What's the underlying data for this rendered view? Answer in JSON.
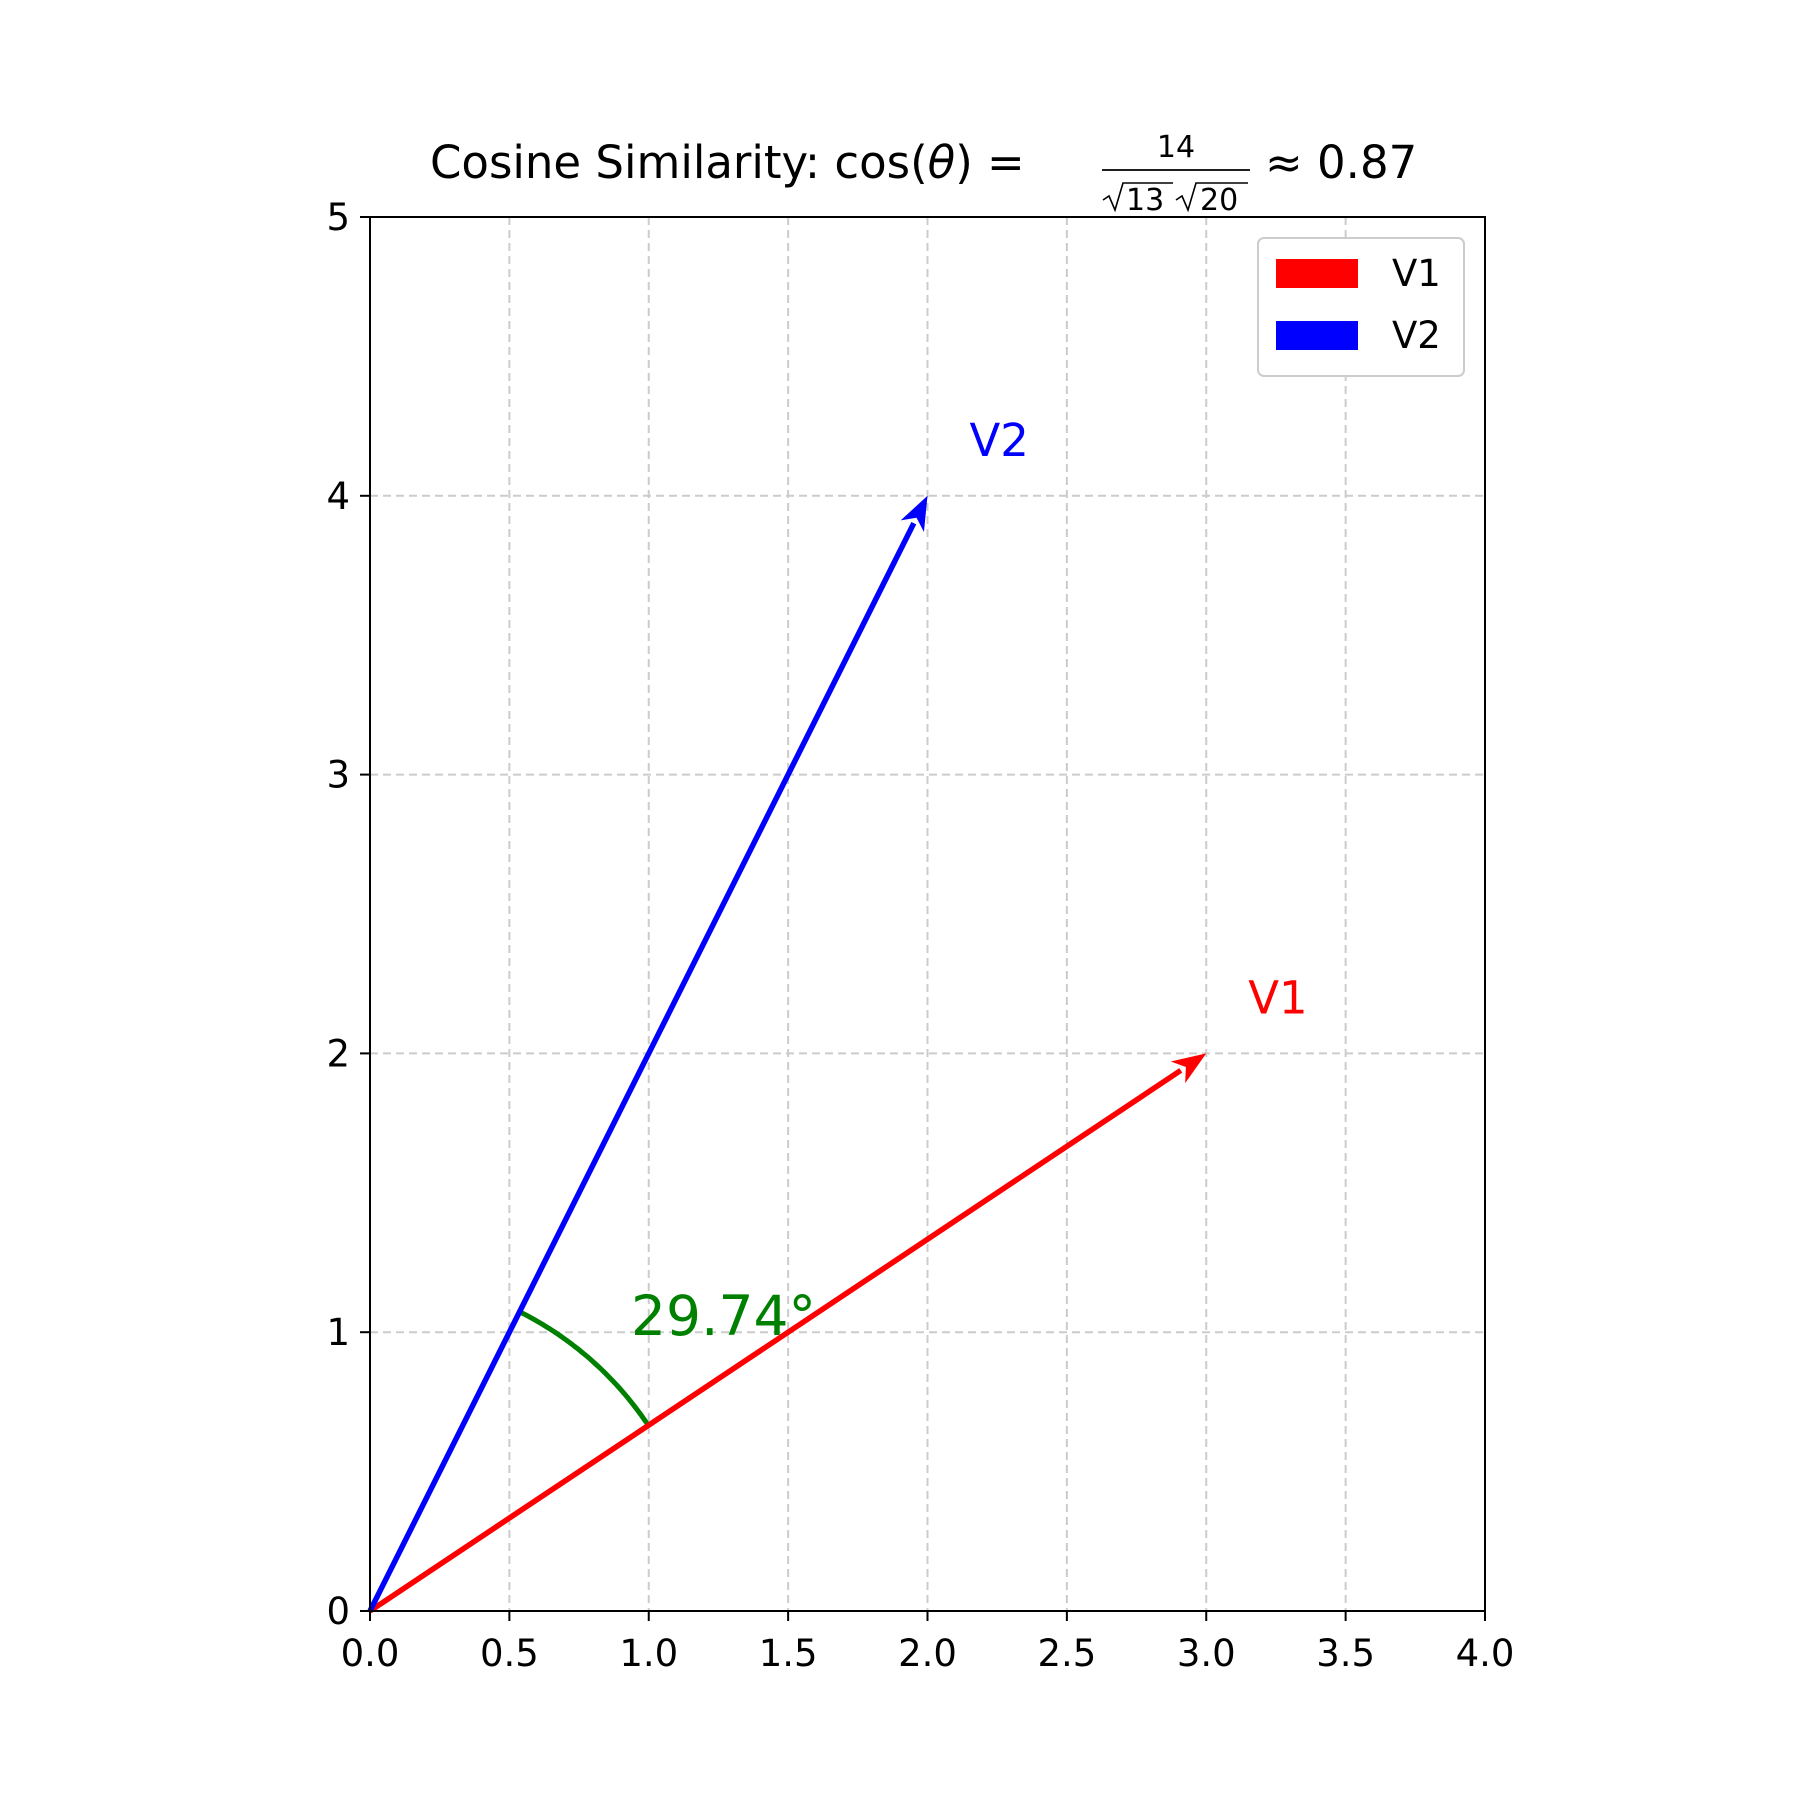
{
  "chart_data": {
    "type": "vector",
    "title": {
      "prefix": "Cosine Similarity: cos(",
      "theta": "θ",
      "eq": ") =",
      "numerator": "14",
      "den_a": "13",
      "den_b": "20",
      "suffix": "≈ 0.87"
    },
    "xlim": [
      0,
      4
    ],
    "ylim": [
      0,
      5
    ],
    "xticks": [
      "0.0",
      "0.5",
      "1.0",
      "1.5",
      "2.0",
      "2.5",
      "3.0",
      "3.5",
      "4.0"
    ],
    "yticks": [
      "0",
      "1",
      "2",
      "3",
      "4",
      "5"
    ],
    "grid": true,
    "legend_position": "upper-right",
    "vectors": [
      {
        "name": "V1",
        "x": 3,
        "y": 2,
        "color": "#ff0000",
        "label": "V1"
      },
      {
        "name": "V2",
        "x": 2,
        "y": 4,
        "color": "#0000ff",
        "label": "V2"
      }
    ],
    "angle": {
      "value_deg": 29.74,
      "label": "29.74°",
      "color": "#008000",
      "arc_radius": 1.2
    }
  }
}
